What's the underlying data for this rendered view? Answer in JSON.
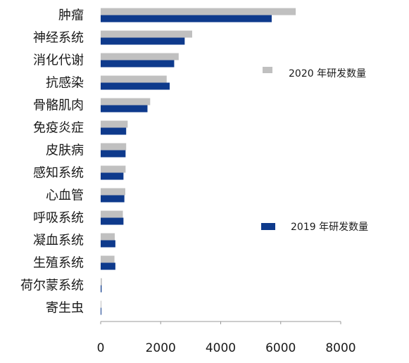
{
  "chart_data": {
    "type": "bar",
    "orientation": "horizontal",
    "categories": [
      "肿瘤",
      "神经系统",
      "消化代谢",
      "抗感染",
      "骨骼肌肉",
      "免疫炎症",
      "皮肤病",
      "感知系统",
      "心血管",
      "呼吸系统",
      "凝血系统",
      "生殖系统",
      "荷尔蒙系统",
      "寄生虫"
    ],
    "series": [
      {
        "name": "2020 年研发数量",
        "color": "#c0c0c0",
        "values": [
          6500,
          3050,
          2600,
          2200,
          1650,
          900,
          850,
          830,
          820,
          740,
          470,
          460,
          40,
          20
        ]
      },
      {
        "name": "2019 年研发数量",
        "color": "#0e3a8c",
        "values": [
          5700,
          2800,
          2450,
          2300,
          1560,
          850,
          830,
          760,
          790,
          760,
          490,
          490,
          30,
          10
        ]
      }
    ],
    "xlim": [
      0,
      8000
    ],
    "xticks": [
      "0",
      "2000",
      "4000",
      "6000",
      "8000"
    ],
    "grid": false,
    "legend_placement": "right"
  }
}
